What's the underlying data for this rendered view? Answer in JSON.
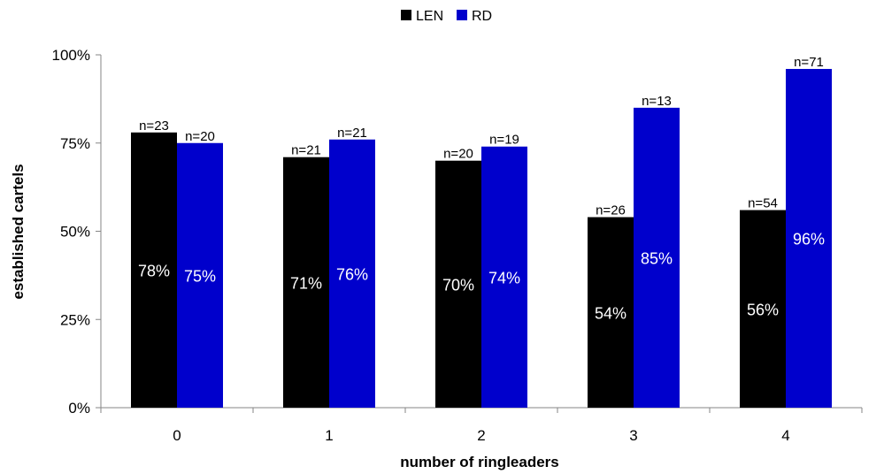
{
  "chart_data": {
    "type": "bar",
    "title": "",
    "xlabel": "number of ringleaders",
    "ylabel": "established cartels",
    "categories": [
      "0",
      "1",
      "2",
      "3",
      "4"
    ],
    "ylim": [
      0,
      100
    ],
    "yticks": [
      "0%",
      "25%",
      "50%",
      "75%",
      "100%"
    ],
    "ytick_values": [
      0,
      25,
      50,
      75,
      100
    ],
    "legend_position": "top-center",
    "grid": false,
    "series": [
      {
        "name": "LEN",
        "color": "#000000",
        "values": [
          78,
          71,
          70,
          54,
          56
        ],
        "value_labels": [
          "78%",
          "71%",
          "70%",
          "54%",
          "56%"
        ],
        "n_labels": [
          "n=23",
          "n=21",
          "n=20",
          "n=26",
          "n=54"
        ]
      },
      {
        "name": "RD",
        "color": "#0000CC",
        "values": [
          75,
          76,
          74,
          85,
          96
        ],
        "value_labels": [
          "75%",
          "76%",
          "74%",
          "85%",
          "96%"
        ],
        "n_labels": [
          "n=20",
          "n=21",
          "n=19",
          "n=13",
          "n=71"
        ]
      }
    ]
  }
}
